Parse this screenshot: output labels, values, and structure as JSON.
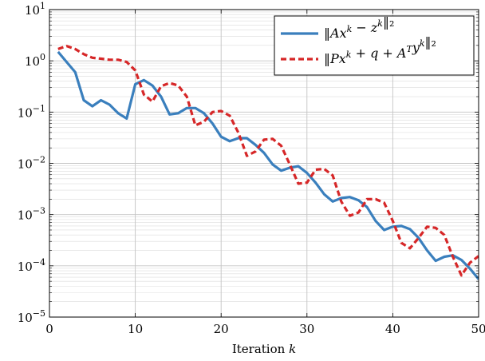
{
  "chart_data": {
    "type": "line",
    "xlabel": "Iteration k",
    "ylabel": "",
    "xlim": [
      0,
      50
    ],
    "ylim": [
      1e-05,
      10
    ],
    "yscale": "log",
    "grid": true,
    "legend_position": "top-right",
    "x_ticks": [
      "0",
      "10",
      "20",
      "30",
      "40",
      "50"
    ],
    "y_ticks": [
      {
        "base": "10",
        "exp": "1"
      },
      {
        "base": "10",
        "exp": "0"
      },
      {
        "base": "10",
        "exp": "−1"
      },
      {
        "base": "10",
        "exp": "−2"
      },
      {
        "base": "10",
        "exp": "−3"
      },
      {
        "base": "10",
        "exp": "−4"
      },
      {
        "base": "10",
        "exp": "−5"
      }
    ],
    "series": [
      {
        "name": "‖Ax^k − z^k‖₂",
        "color": "#3a7fbd",
        "style": "solid",
        "x": [
          1,
          2,
          3,
          4,
          5,
          6,
          7,
          8,
          9,
          10,
          11,
          12,
          13,
          14,
          15,
          16,
          17,
          18,
          19,
          20,
          21,
          22,
          23,
          24,
          25,
          26,
          27,
          28,
          29,
          30,
          31,
          32,
          33,
          34,
          35,
          36,
          37,
          38,
          39,
          40,
          41,
          42,
          43,
          44,
          45,
          46,
          47,
          48,
          49,
          50
        ],
        "y": [
          1.5,
          0.95,
          0.6,
          0.17,
          0.13,
          0.17,
          0.14,
          0.095,
          0.075,
          0.35,
          0.42,
          0.33,
          0.2,
          0.09,
          0.095,
          0.12,
          0.12,
          0.095,
          0.06,
          0.033,
          0.027,
          0.031,
          0.031,
          0.023,
          0.016,
          0.0095,
          0.0072,
          0.0082,
          0.0088,
          0.0065,
          0.0042,
          0.0025,
          0.0018,
          0.0021,
          0.0022,
          0.0019,
          0.0014,
          0.00075,
          0.0005,
          0.00058,
          0.0006,
          0.00052,
          0.00035,
          0.0002,
          0.000125,
          0.00015,
          0.00016,
          0.00013,
          8.8e-05,
          5.5e-05
        ]
      },
      {
        "name": "‖Px^k + q + A^Ty^k‖₂",
        "color": "#d62728",
        "style": "dashed",
        "x": [
          1,
          2,
          3,
          4,
          5,
          6,
          7,
          8,
          9,
          10,
          11,
          12,
          13,
          14,
          15,
          16,
          17,
          18,
          19,
          20,
          21,
          22,
          23,
          24,
          25,
          26,
          27,
          28,
          29,
          30,
          31,
          32,
          33,
          34,
          35,
          36,
          37,
          38,
          39,
          40,
          41,
          42,
          43,
          44,
          45,
          46,
          47,
          48,
          49,
          50
        ],
        "y": [
          1.7,
          1.95,
          1.7,
          1.35,
          1.15,
          1.1,
          1.05,
          1.05,
          0.95,
          0.65,
          0.22,
          0.16,
          0.32,
          0.37,
          0.33,
          0.2,
          0.055,
          0.065,
          0.1,
          0.105,
          0.085,
          0.04,
          0.014,
          0.017,
          0.029,
          0.03,
          0.022,
          0.0095,
          0.004,
          0.0042,
          0.0075,
          0.0078,
          0.0058,
          0.0018,
          0.00095,
          0.0011,
          0.002,
          0.002,
          0.0017,
          0.00075,
          0.00028,
          0.00022,
          0.00035,
          0.00058,
          0.00055,
          0.0004,
          0.00015,
          6.5e-05,
          0.000115,
          0.000155
        ]
      }
    ]
  }
}
